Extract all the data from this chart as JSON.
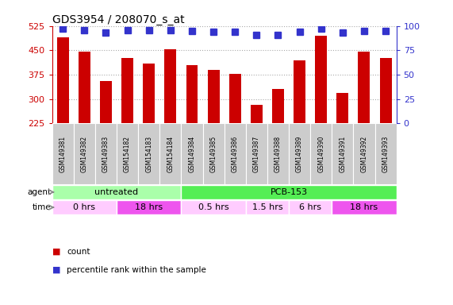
{
  "title": "GDS3954 / 208070_s_at",
  "samples": [
    "GSM149381",
    "GSM149382",
    "GSM149383",
    "GSM154182",
    "GSM154183",
    "GSM154184",
    "GSM149384",
    "GSM149385",
    "GSM149386",
    "GSM149387",
    "GSM149388",
    "GSM149389",
    "GSM149390",
    "GSM149391",
    "GSM149392",
    "GSM149393"
  ],
  "counts": [
    490,
    447,
    356,
    425,
    410,
    452,
    405,
    390,
    378,
    282,
    330,
    420,
    495,
    318,
    447,
    425
  ],
  "percentiles": [
    97,
    96,
    93,
    96,
    96,
    96,
    95,
    94,
    94,
    91,
    91,
    94,
    97,
    93,
    95,
    95
  ],
  "ylim_left": [
    225,
    525
  ],
  "ylim_right": [
    0,
    100
  ],
  "yticks_left": [
    225,
    300,
    375,
    450,
    525
  ],
  "yticks_right": [
    0,
    25,
    50,
    75,
    100
  ],
  "bar_color": "#cc0000",
  "dot_color": "#3333cc",
  "agent_groups": [
    {
      "label": "untreated",
      "start": 0,
      "end": 6,
      "color": "#aaffaa"
    },
    {
      "label": "PCB-153",
      "start": 6,
      "end": 16,
      "color": "#55ee55"
    }
  ],
  "time_groups": [
    {
      "label": "0 hrs",
      "start": 0,
      "end": 3,
      "color": "#ffccff"
    },
    {
      "label": "18 hrs",
      "start": 3,
      "end": 6,
      "color": "#ee55ee"
    },
    {
      "label": "0.5 hrs",
      "start": 6,
      "end": 9,
      "color": "#ffccff"
    },
    {
      "label": "1.5 hrs",
      "start": 9,
      "end": 11,
      "color": "#ffccff"
    },
    {
      "label": "6 hrs",
      "start": 11,
      "end": 13,
      "color": "#ffccff"
    },
    {
      "label": "18 hrs",
      "start": 13,
      "end": 16,
      "color": "#ee55ee"
    }
  ],
  "bar_color_left": "#cc0000",
  "bar_color_right": "#3333cc",
  "grid_color": "#aaaaaa",
  "label_color_left": "#cc0000",
  "label_color_right": "#3333cc",
  "bar_width": 0.55,
  "dot_size": 6,
  "sample_area_color": "#cccccc",
  "title_size": 10
}
